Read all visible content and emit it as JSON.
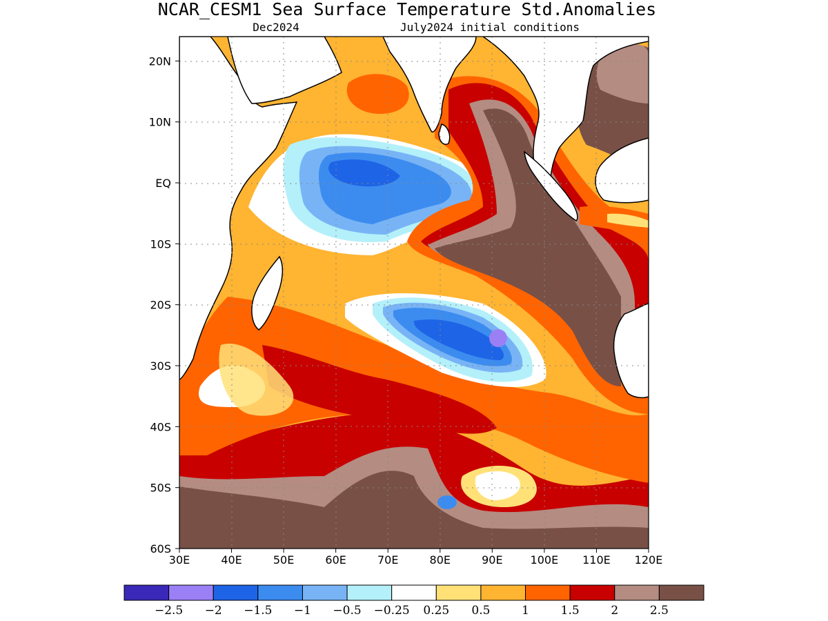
{
  "title": "NCAR_CESM1 Sea Surface Temperature Std.Anomalies",
  "subtitle_left": "Dec2024",
  "subtitle_right": "July2024 initial conditions",
  "map": {
    "lon_range": [
      30,
      120
    ],
    "lat_range": [
      -60,
      24
    ],
    "lon_ticks": [
      "30E",
      "40E",
      "50E",
      "60E",
      "70E",
      "80E",
      "90E",
      "100E",
      "110E",
      "120E"
    ],
    "lat_ticks": [
      "20N",
      "10N",
      "EQ",
      "10S",
      "20S",
      "30S",
      "40S",
      "50S",
      "60S"
    ],
    "grid": "dotted"
  },
  "colorbar": {
    "colors": [
      "#3a28b8",
      "#9b80f5",
      "#1e64e6",
      "#3c8cf0",
      "#78b4f5",
      "#b4f0fa",
      "#ffffff",
      "#ffe178",
      "#ffb432",
      "#ff6400",
      "#c80000",
      "#b48c82",
      "#785046"
    ],
    "labels": [
      "−2.5",
      "−2",
      "−1.5",
      "−1",
      "−0.5",
      "−0.25",
      "0.25",
      "0.5",
      "1",
      "1.5",
      "2",
      "2.5"
    ]
  }
}
